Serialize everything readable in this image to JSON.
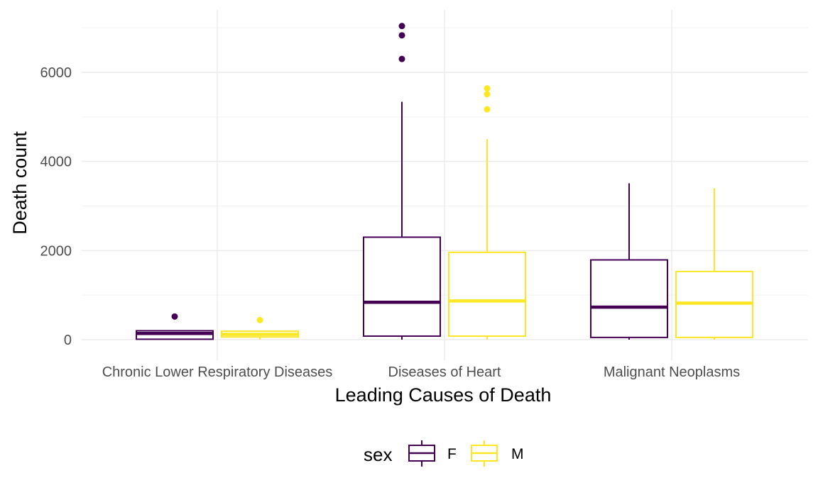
{
  "chart_data": {
    "type": "boxplot",
    "xlabel": "Leading Causes of Death",
    "ylabel": "Death count",
    "categories": [
      "Chronic Lower Respiratory Diseases",
      "Diseases of Heart",
      "Malignant Neoplasms"
    ],
    "ylim": [
      -500,
      7400
    ],
    "yticks": [
      0,
      2000,
      4000,
      6000
    ],
    "grid": true,
    "legend": {
      "title": "sex",
      "position": "bottom"
    },
    "series": [
      {
        "name": "F",
        "color": "#440154",
        "boxes": [
          {
            "whisker_low": 0,
            "q1": 10,
            "median": 140,
            "q3": 200,
            "whisker_high": 200,
            "outliers": [
              520
            ]
          },
          {
            "whisker_low": 0,
            "q1": 80,
            "median": 840,
            "q3": 2300,
            "whisker_high": 5340,
            "outliers": [
              6300,
              6830,
              7040
            ]
          },
          {
            "whisker_low": 0,
            "q1": 50,
            "median": 730,
            "q3": 1790,
            "whisker_high": 3510,
            "outliers": []
          }
        ]
      },
      {
        "name": "M",
        "color": "#FDE725",
        "boxes": [
          {
            "whisker_low": 0,
            "q1": 60,
            "median": 120,
            "q3": 190,
            "whisker_high": 190,
            "outliers": [
              440
            ]
          },
          {
            "whisker_low": 0,
            "q1": 80,
            "median": 870,
            "q3": 1960,
            "whisker_high": 4500,
            "outliers": [
              5170,
              5510,
              5640
            ]
          },
          {
            "whisker_low": 0,
            "q1": 50,
            "median": 820,
            "q3": 1530,
            "whisker_high": 3400,
            "outliers": []
          }
        ]
      }
    ]
  }
}
